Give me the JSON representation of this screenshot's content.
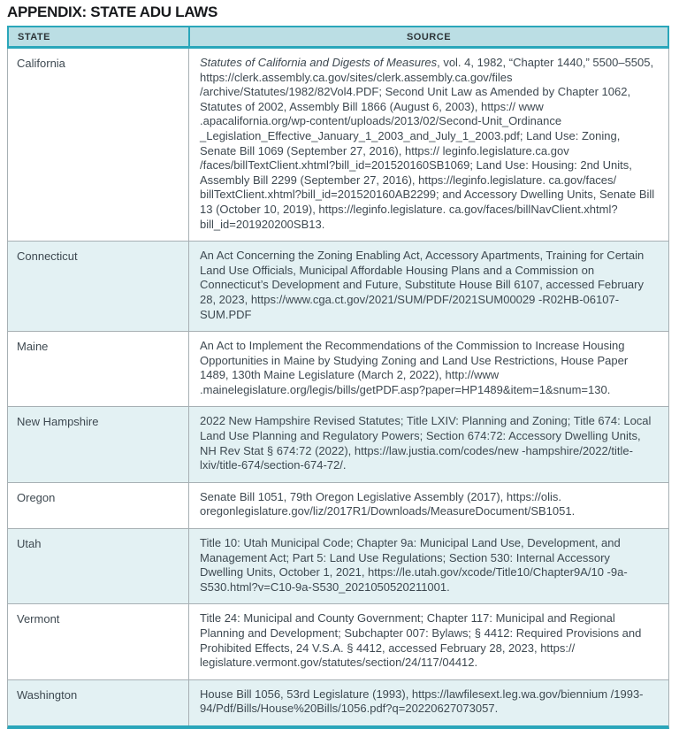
{
  "page": {
    "title": "APPENDIX: STATE ADU LAWS"
  },
  "colors": {
    "accent_teal": "#2AA6BA",
    "header_bg": "#BBDEE4",
    "alt_row_bg": "#E3F1F3",
    "grid_line": "#A7B0B4",
    "body_text": "#3E4951",
    "title_text": "#17191C"
  },
  "table": {
    "columns": [
      {
        "label": "STATE"
      },
      {
        "label": "SOURCE"
      }
    ],
    "rows": [
      {
        "state": "California",
        "source_italic": "Statutes of California and Digests of Measures",
        "source_text": ", vol. 4, 1982, “Chapter 1440,” 5500–5505, https://clerk.assembly.ca.gov/sites/clerk.assembly.ca.gov/files /archive/Statutes/1982/82Vol4.PDF; Second Unit Law as Amended by Chapter 1062, Statutes of 2002, Assembly Bill 1866 (August 6, 2003), https:// www .apacalifornia.org/wp-content/uploads/2013/02/Second-Unit_Ordinance _Legislation_Effective_January_1_2003_and_July_1_2003.pdf; Land Use: Zoning, Senate Bill 1069 (September 27, 2016), https:// leginfo.legislature.ca.gov /faces/billTextClient.xhtml?bill_id=201520160SB1069; Land Use: Housing: 2nd Units, Assembly Bill 2299 (September 27, 2016), https://leginfo.legislature. ca.gov/faces/ billTextClient.xhtml?bill_id=201520160AB2299; and Accessory Dwelling Units, Senate Bill 13 (October 10, 2019), https://leginfo.legislature. ca.gov/faces/billNavClient.xhtml?bill_id=201920200SB13."
      },
      {
        "state": "Connecticut",
        "source_italic": "",
        "source_text": "An Act Concerning the Zoning Enabling Act, Accessory Apartments, Training for Certain Land Use Officials, Municipal Affordable Housing Plans and a Commission on Connecticut’s Development and Future, Substitute House Bill 6107, accessed February 28, 2023, https://www.cga.ct.gov/2021/SUM/PDF/2021SUM00029 -R02HB-06107-SUM.PDF"
      },
      {
        "state": "Maine",
        "source_italic": "",
        "source_text": "An Act to Implement the Recommendations of the Commission to Increase Housing Opportunities in Maine by Studying Zoning and Land Use Restrictions, House Paper 1489, 130th Maine Legislature (March 2, 2022), http://www .mainelegislature.org/legis/bills/getPDF.asp?paper=HP1489&item=1&snum=130."
      },
      {
        "state": "New Hampshire",
        "source_italic": "",
        "source_text": "2022 New Hampshire Revised Statutes; Title LXIV: Planning and Zoning; Title 674: Local Land Use Planning and Regulatory Powers; Section 674:72: Accessory Dwelling Units, NH Rev Stat § 674:72 (2022), https://law.justia.com/codes/new -hampshire/2022/title-lxiv/title-674/section-674-72/."
      },
      {
        "state": "Oregon",
        "source_italic": "",
        "source_text": "Senate Bill 1051, 79th Oregon Legislative Assembly (2017), https://olis. oregonlegislature.gov/liz/2017R1/Downloads/MeasureDocument/SB1051."
      },
      {
        "state": "Utah",
        "source_italic": "",
        "source_text": "Title 10: Utah Municipal Code; Chapter 9a: Municipal Land Use, Development, and Management Act; Part 5: Land Use Regulations; Section 530: Internal Accessory Dwelling Units, October 1, 2021, https://le.utah.gov/xcode/Title10/Chapter9A/10 -9a-S530.html?v=C10-9a-S530_2021050520211001."
      },
      {
        "state": "Vermont",
        "source_italic": "",
        "source_text": "Title 24: Municipal and County Government; Chapter 117: Municipal and Regional Planning and Development; Subchapter 007: Bylaws; § 4412: Required Provisions and Prohibited Effects, 24 V.S.A. § 4412, accessed February 28, 2023, https:// legislature.vermont.gov/statutes/section/24/117/04412."
      },
      {
        "state": "Washington",
        "source_italic": "",
        "source_text": "House Bill 1056, 53rd Legislature (1993), https://lawfilesext.leg.wa.gov/biennium /1993-94/Pdf/Bills/House%20Bills/1056.pdf?q=20220627073057."
      }
    ]
  }
}
